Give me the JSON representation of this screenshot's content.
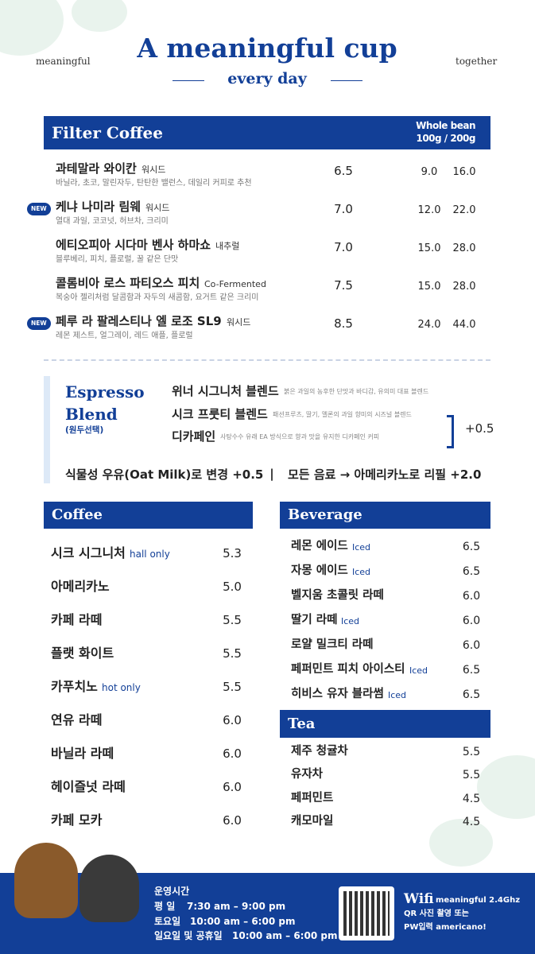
{
  "header": {
    "left": "meaningful",
    "right": "together",
    "title": "A meaningful cup",
    "subtitle": "every day"
  },
  "filter": {
    "title": "Filter Coffee",
    "col_header": [
      "Whole bean",
      "100g / 200g"
    ],
    "items": [
      {
        "name": "과테말라 와이칸",
        "tag": "워시드",
        "desc": "바닐라, 초코, 말린자두, 탄탄한 밸런스, 데일리 커피로 추천",
        "price": "6.5",
        "p100": "9.0",
        "p200": "16.0"
      },
      {
        "badge": "NEW",
        "name": "케냐 나미라 림웨",
        "tag": "워시드",
        "desc": "열대 과일, 코코넛, 허브차, 크리미",
        "price": "7.0",
        "p100": "12.0",
        "p200": "22.0"
      },
      {
        "name": "에티오피아 시다마 벤사 하마쇼",
        "tag": "내추럴",
        "desc": "블루베리, 피치, 플로럴, 꿀 같은 단맛",
        "price": "7.0",
        "p100": "15.0",
        "p200": "28.0"
      },
      {
        "name": "콜롬비아 로스 파티오스 피치",
        "tag": "Co-Fermented",
        "desc": "복숭아 젤리처럼 달콤함과 자두의 새콤함, 요거트 같은 크리미",
        "price": "7.5",
        "p100": "15.0",
        "p200": "28.0"
      },
      {
        "badge": "NEW",
        "name": "페루 라 팔레스티나 엘 로조 SL9",
        "tag": "워시드",
        "desc": "레몬 제스트, 얼그레이, 레드 애플, 플로럴",
        "price": "8.5",
        "p100": "24.0",
        "p200": "44.0"
      }
    ]
  },
  "espresso": {
    "title": [
      "Espresso",
      "Blend"
    ],
    "subtitle": "(원두선택)",
    "extra": "+0.5",
    "blends": [
      {
        "name": "위너 시그니처 블렌드",
        "desc": "붉은 과일의 농후한 단맛과 바디감, 유의미 대표 블렌드"
      },
      {
        "name": "시크 프룻티 블렌드",
        "desc": "패션프루츠, 딸기, 멜론의 과일 향미의 시즈널 블렌드"
      },
      {
        "name": "디카페인",
        "desc": "사탕수수 유래 EA 방식으로 향과 맛을 유지한 디카페인 커피"
      }
    ]
  },
  "options": [
    "식물성 우유(Oat Milk)로 변경 +0.5",
    "|",
    "모든 음료 → 아메리카노로 리필 +2.0"
  ],
  "coffee": {
    "title": "Coffee",
    "items": [
      {
        "name": "시크 시그니처",
        "tag": "hall only",
        "price": "5.3"
      },
      {
        "name": "아메리카노",
        "price": "5.0"
      },
      {
        "name": "카페 라떼",
        "price": "5.5"
      },
      {
        "name": "플랫 화이트",
        "price": "5.5"
      },
      {
        "name": "카푸치노",
        "tag": "hot only",
        "price": "5.5"
      },
      {
        "name": "연유 라떼",
        "price": "6.0"
      },
      {
        "name": "바닐라 라떼",
        "price": "6.0"
      },
      {
        "name": "헤이즐넛 라떼",
        "price": "6.0"
      },
      {
        "name": "카페 모카",
        "price": "6.0"
      }
    ]
  },
  "beverage": {
    "title": "Beverage",
    "items": [
      {
        "name": "레몬 에이드",
        "tag": "Iced",
        "price": "6.5"
      },
      {
        "name": "자몽 에이드",
        "tag": "Iced",
        "price": "6.5"
      },
      {
        "name": "벨지움 초콜릿 라떼",
        "price": "6.0"
      },
      {
        "name": "딸기 라떼",
        "tag": "Iced",
        "price": "6.0"
      },
      {
        "name": "로얄 밀크티 라떼",
        "price": "6.0"
      },
      {
        "name": "페퍼민트 피치 아이스티",
        "tag": "Iced",
        "price": "6.5"
      },
      {
        "name": "히비스 유자 블라썸",
        "tag": "Iced",
        "price": "6.5"
      }
    ]
  },
  "tea": {
    "title": "Tea",
    "items": [
      {
        "name": "제주 청귤차",
        "price": "5.5"
      },
      {
        "name": "유자차",
        "price": "5.5"
      },
      {
        "name": "페퍼민트",
        "price": "4.5"
      },
      {
        "name": "캐모마일",
        "price": "4.5"
      }
    ]
  },
  "footer": {
    "hours_title": "운영시간",
    "hours": [
      [
        "평 일",
        "7:30 am – 9:00 pm"
      ],
      [
        "토요일",
        "10:00 am – 6:00 pm"
      ],
      [
        "일요일 및 공휴일",
        "10:00 am – 6:00 pm"
      ]
    ],
    "wifi_title": "Wifi",
    "wifi_name": "meaningful 2.4Ghz",
    "wifi_lines": [
      "QR 사진 촬영 또는",
      "PW입력 americano!"
    ]
  }
}
